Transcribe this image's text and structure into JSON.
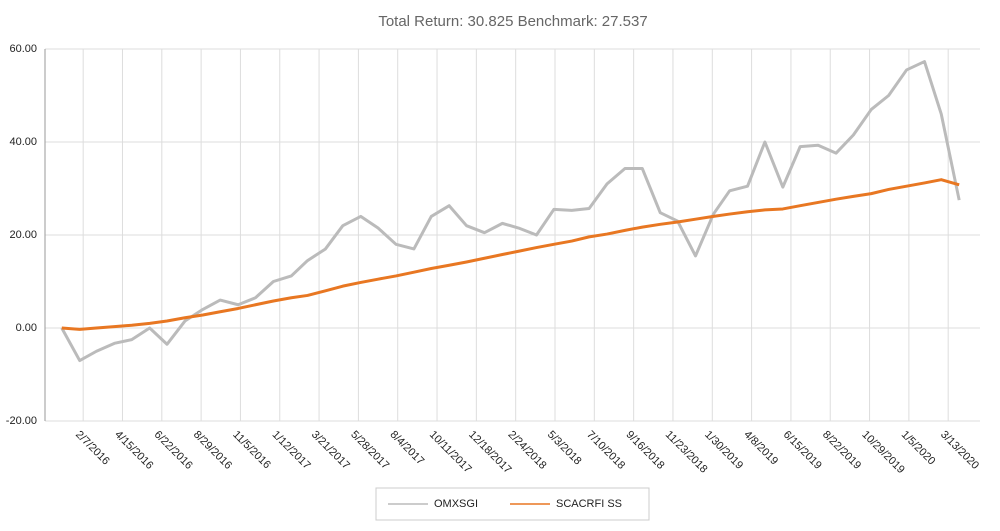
{
  "chart_data": {
    "type": "line",
    "title": "Total Return: 30.825 Benchmark: 27.537",
    "x": [
      "1/1/2016",
      "2/1/2016",
      "3/1/2016",
      "4/1/2016",
      "5/1/2016",
      "6/1/2016",
      "7/1/2016",
      "8/1/2016",
      "9/1/2016",
      "10/1/2016",
      "11/1/2016",
      "12/1/2016",
      "1/1/2017",
      "2/1/2017",
      "3/1/2017",
      "4/1/2017",
      "5/1/2017",
      "6/1/2017",
      "7/1/2017",
      "8/1/2017",
      "9/1/2017",
      "10/1/2017",
      "11/1/2017",
      "12/1/2017",
      "1/1/2018",
      "2/1/2018",
      "3/1/2018",
      "4/1/2018",
      "5/1/2018",
      "6/1/2018",
      "7/1/2018",
      "8/1/2018",
      "9/1/2018",
      "10/1/2018",
      "11/1/2018",
      "12/1/2018",
      "1/1/2019",
      "2/1/2019",
      "3/1/2019",
      "4/1/2019",
      "5/1/2019",
      "6/1/2019",
      "7/1/2019",
      "8/1/2019",
      "9/1/2019",
      "10/1/2019",
      "11/1/2019",
      "12/1/2019",
      "1/1/2020",
      "2/1/2020",
      "3/1/2020",
      "4/1/2020"
    ],
    "series": [
      {
        "name": "OMXSGI",
        "color": "#bbbbbb",
        "values": [
          0,
          -7,
          -5,
          -3.3,
          -2.5,
          0,
          -3.5,
          1.5,
          4,
          6,
          5,
          6.5,
          10,
          11.2,
          14.5,
          17,
          22,
          24,
          21.5,
          18,
          17,
          24,
          26.3,
          22,
          20.5,
          22.5,
          21.5,
          20,
          25.5,
          25.3,
          25.7,
          31,
          34.3,
          34.3,
          24.8,
          23,
          15.5,
          24.5,
          29.5,
          30.5,
          40,
          30.3,
          39,
          39.3,
          37.6,
          41.5,
          47,
          50,
          55.5,
          57.3,
          46,
          27.5
        ]
      },
      {
        "name": "SCACRFI SS",
        "color": "#e87722",
        "values": [
          0,
          -0.3,
          0,
          0.3,
          0.6,
          1,
          1.5,
          2.2,
          2.8,
          3.5,
          4.2,
          5,
          5.8,
          6.5,
          7,
          8,
          9,
          9.8,
          10.5,
          11.2,
          12,
          12.8,
          13.5,
          14.2,
          15,
          15.8,
          16.5,
          17.3,
          18,
          18.7,
          19.6,
          20.2,
          21,
          21.7,
          22.3,
          22.8,
          23.4,
          24,
          24.5,
          25,
          25.4,
          25.6,
          26.3,
          27,
          27.7,
          28.3,
          28.9,
          29.8,
          30.5,
          31.2,
          31.9,
          30.8
        ]
      }
    ],
    "xlim": [
      "12/3/2015",
      "5/7/2020"
    ],
    "xticks": [
      "2/7/2016",
      "4/15/2016",
      "6/22/2016",
      "8/29/2016",
      "11/5/2016",
      "1/12/2017",
      "3/21/2017",
      "5/28/2017",
      "8/4/2017",
      "10/11/2017",
      "12/18/2017",
      "2/24/2018",
      "5/3/2018",
      "7/10/2018",
      "9/16/2018",
      "11/23/2018",
      "1/30/2019",
      "4/8/2019",
      "6/15/2019",
      "8/22/2019",
      "10/29/2019",
      "1/5/2020",
      "3/13/2020"
    ],
    "ylim": [
      -20,
      60
    ],
    "yticks": [
      {
        "value": -20,
        "label": "-20.00"
      },
      {
        "value": 0,
        "label": "0.00"
      },
      {
        "value": 20,
        "label": "20.00"
      },
      {
        "value": 40,
        "label": "40.00"
      },
      {
        "value": 60,
        "label": "60.00"
      }
    ],
    "grid": true,
    "legend": "bottom"
  }
}
